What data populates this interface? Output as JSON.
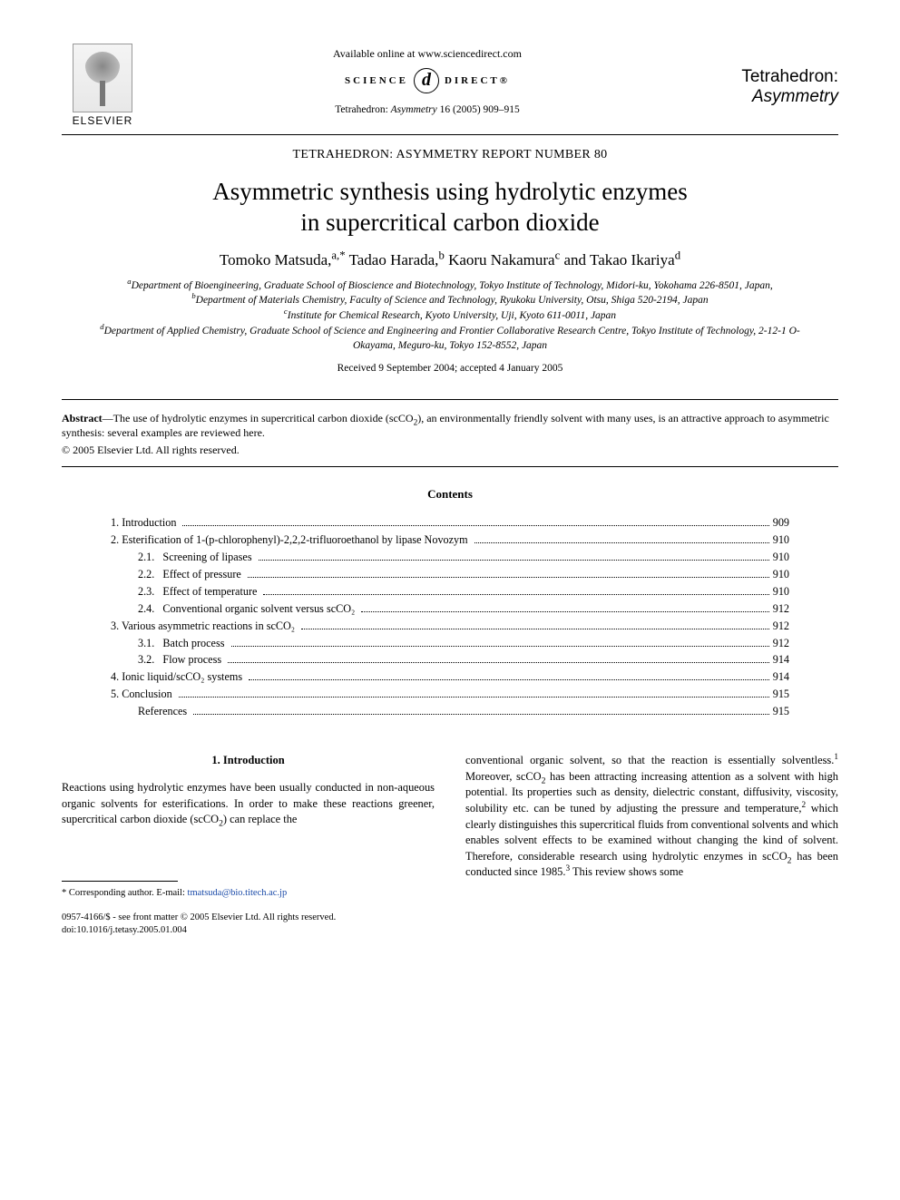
{
  "header": {
    "publisher": "ELSEVIER",
    "available_line": "Available online at www.sciencedirect.com",
    "sd_left": "SCIENCE",
    "sd_right": "DIRECT®",
    "journal_ref_prefix": "Tetrahedron: ",
    "journal_ref_italic": "Asymmetry",
    "journal_ref_rest": " 16 (2005) 909–915",
    "journal_title_line1": "Tetrahedron:",
    "journal_title_line2": "Asymmetry"
  },
  "report_line": "TETRAHEDRON: ASYMMETRY REPORT NUMBER 80",
  "title_line1": "Asymmetric synthesis using hydrolytic enzymes",
  "title_line2": "in supercritical carbon dioxide",
  "authors_html": "Tomoko Matsuda,<sup>a,*</sup> Tadao Harada,<sup>b</sup> Kaoru Nakamura<sup>c</sup> and Takao Ikariya<sup>d</sup>",
  "affiliations": [
    "<sup>a</sup>Department of Bioengineering, Graduate School of Bioscience and Biotechnology, Tokyo Institute of Technology, Midori-ku, Yokohama 226-8501, Japan,",
    "<sup>b</sup>Department of Materials Chemistry, Faculty of Science and Technology, Ryukoku University, Otsu, Shiga 520-2194, Japan",
    "<sup>c</sup>Institute for Chemical Research, Kyoto University, Uji, Kyoto 611-0011, Japan",
    "<sup>d</sup>Department of Applied Chemistry, Graduate School of Science and Engineering and Frontier Collaborative Research Centre, Tokyo Institute of Technology, 2-12-1 O-Okayama, Meguro-ku, Tokyo 152-8552, Japan"
  ],
  "dates": "Received 9 September 2004; accepted 4 January 2005",
  "abstract_label": "Abstract",
  "abstract_body": "—The use of hydrolytic enzymes in supercritical carbon dioxide (scCO<sub>2</sub>), an environmentally friendly solvent with many uses, is an attractive approach to asymmetric synthesis: several examples are reviewed here.",
  "copyright": "© 2005 Elsevier Ltd. All rights reserved.",
  "contents_heading": "Contents",
  "toc": [
    {
      "indent": 0,
      "label": "1. Introduction",
      "page": "909"
    },
    {
      "indent": 0,
      "label": "2. Esterification of 1-(p-chlorophenyl)-2,2,2-trifluoroethanol by lipase Novozym",
      "page": "910"
    },
    {
      "indent": 1,
      "label": "2.1.   Screening of lipases",
      "page": "910"
    },
    {
      "indent": 1,
      "label": "2.2.   Effect of pressure",
      "page": "910"
    },
    {
      "indent": 1,
      "label": "2.3.   Effect of temperature",
      "page": "910"
    },
    {
      "indent": 1,
      "label": "2.4.   Conventional organic solvent versus scCO₂",
      "page": "912"
    },
    {
      "indent": 0,
      "label": "3. Various asymmetric reactions in scCO₂",
      "page": "912"
    },
    {
      "indent": 1,
      "label": "3.1.   Batch process",
      "page": "912"
    },
    {
      "indent": 1,
      "label": "3.2.   Flow process",
      "page": "914"
    },
    {
      "indent": 0,
      "label": "4. Ionic liquid/scCO₂ systems",
      "page": "914"
    },
    {
      "indent": 0,
      "label": "5. Conclusion",
      "page": "915"
    },
    {
      "indent": 1,
      "label": "References",
      "page": "915"
    }
  ],
  "section1_heading": "1. Introduction",
  "col_left": "Reactions using hydrolytic enzymes have been usually conducted in non-aqueous organic solvents for esterifications. In order to make these reactions greener, supercritical carbon dioxide (scCO<sub>2</sub>) can replace the",
  "col_right": "conventional organic solvent, so that the reaction is essentially solventless.<sup>1</sup> Moreover, scCO<sub>2</sub> has been attracting increasing attention as a solvent with high potential. Its properties such as density, dielectric constant, diffusivity, viscosity, solubility etc. can be tuned by adjusting the pressure and temperature,<sup>2</sup> which clearly distinguishes this supercritical fluids from conventional solvents and which enables solvent effects to be examined without changing the kind of solvent. Therefore, considerable research using hydrolytic enzymes in scCO<sub>2</sub> has been conducted since 1985.<sup>3</sup> This review shows some",
  "footer": {
    "corr_label": "* Corresponding author.  E-mail: ",
    "email": "tmatsuda@bio.titech.ac.jp",
    "issn_line": "0957-4166/$ - see front matter © 2005 Elsevier Ltd. All rights reserved.",
    "doi_line": "doi:10.1016/j.tetasy.2005.01.004"
  },
  "colors": {
    "text": "#000000",
    "background": "#ffffff",
    "link": "#1a4aa8",
    "rule": "#000000"
  },
  "typography": {
    "body_font": "Georgia / Times New Roman serif",
    "title_size_pt": 20,
    "body_size_pt": 9.3,
    "author_size_pt": 12.5,
    "affil_size_pt": 8.6,
    "toc_size_pt": 9.2
  }
}
